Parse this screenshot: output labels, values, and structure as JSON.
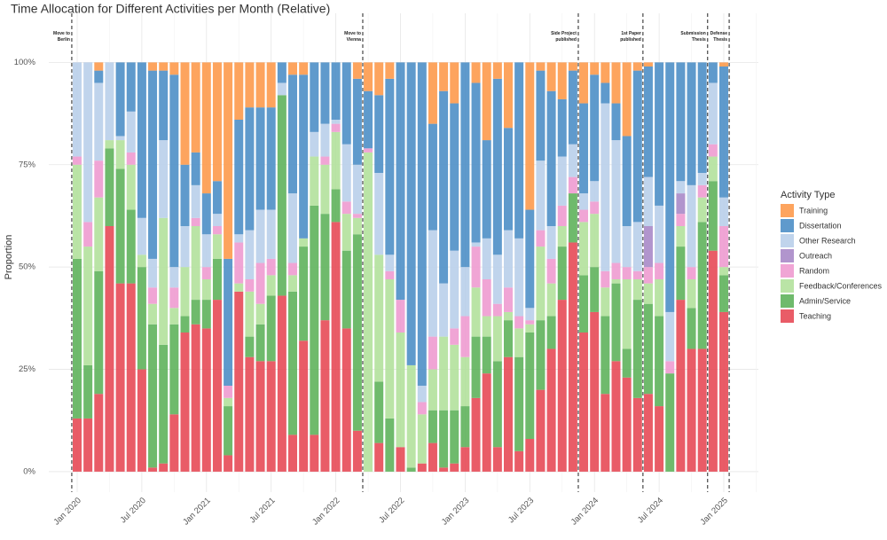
{
  "chart_data": {
    "type": "stacked_bar",
    "title": "Time Allocation for Different Activities per Month (Relative)",
    "y_label": "Proportion",
    "legend_title": "Activity Type",
    "legend": "right",
    "grid": true,
    "x": [
      "2020-01",
      "2020-02",
      "2020-03",
      "2020-04",
      "2020-05",
      "2020-06",
      "2020-07",
      "2020-08",
      "2020-09",
      "2020-10",
      "2020-11",
      "2020-12",
      "2021-01",
      "2021-02",
      "2021-03",
      "2021-04",
      "2021-05",
      "2021-06",
      "2021-07",
      "2021-08",
      "2021-09",
      "2021-10",
      "2021-11",
      "2021-12",
      "2022-01",
      "2022-02",
      "2022-03",
      "2022-04",
      "2022-05",
      "2022-06",
      "2022-07",
      "2022-08",
      "2022-09",
      "2022-10",
      "2022-11",
      "2022-12",
      "2023-01",
      "2023-02",
      "2023-03",
      "2023-04",
      "2023-05",
      "2023-06",
      "2023-07",
      "2023-08",
      "2023-09",
      "2023-10",
      "2023-11",
      "2023-12",
      "2024-01",
      "2024-02",
      "2024-03",
      "2024-04",
      "2024-05",
      "2024-06",
      "2024-07",
      "2024-08",
      "2024-09",
      "2024-10",
      "2024-11",
      "2024-12",
      "2025-01"
    ],
    "xticks": [
      {
        "value": "2020-01",
        "label": "Jan 2020"
      },
      {
        "value": "2020-07",
        "label": "Jul 2020"
      },
      {
        "value": "2021-01",
        "label": "Jan 2021"
      },
      {
        "value": "2021-07",
        "label": "Jul 2021"
      },
      {
        "value": "2022-01",
        "label": "Jan 2022"
      },
      {
        "value": "2022-07",
        "label": "Jul 2022"
      },
      {
        "value": "2023-01",
        "label": "Jan 2023"
      },
      {
        "value": "2023-07",
        "label": "Jul 2023"
      },
      {
        "value": "2024-01",
        "label": "Jan 2024"
      },
      {
        "value": "2024-07",
        "label": "Jul 2024"
      },
      {
        "value": "2025-01",
        "label": "Jan 2025"
      }
    ],
    "ylim": [
      -5,
      112
    ],
    "yticks": [
      {
        "value": 0,
        "label": "0%"
      },
      {
        "value": 25,
        "label": "25%"
      },
      {
        "value": 50,
        "label": "50%"
      },
      {
        "value": 75,
        "label": "75%"
      },
      {
        "value": 100,
        "label": "100%"
      }
    ],
    "events": [
      {
        "x": "2020-01",
        "label": "Move to\nBerlin"
      },
      {
        "x": "2022-04",
        "label": "Move to\nVienna"
      },
      {
        "x": "2023-12",
        "label": "Side Project\npublished"
      },
      {
        "x": "2024-06",
        "label": "1st Paper\npublished"
      },
      {
        "x": "2024-12",
        "label": "Submission\nThesis"
      },
      {
        "x": "2025-02",
        "label": "Defense\nThesis"
      }
    ],
    "series": [
      {
        "name": "Training",
        "color": "#fd9a4d",
        "values": [
          0,
          0,
          2,
          0,
          0,
          0,
          0,
          2,
          2,
          3,
          25,
          22,
          32,
          29,
          48,
          14,
          11,
          11,
          11,
          0,
          3,
          3,
          0,
          0,
          0,
          0,
          4,
          7,
          8,
          4,
          0,
          0,
          0,
          15,
          7,
          10,
          0,
          5,
          19,
          4,
          16,
          0,
          36,
          2,
          7,
          9,
          2,
          10,
          3,
          5,
          10,
          18,
          2,
          1,
          0,
          0,
          0,
          0,
          0,
          0,
          1
        ]
      },
      {
        "name": "Dissertation",
        "color": "#4e8fc6",
        "values": [
          0,
          0,
          3,
          0,
          18,
          12,
          38,
          46,
          17,
          47,
          15,
          8,
          10,
          8,
          31,
          28,
          30,
          25,
          25,
          5,
          29,
          40,
          17,
          15,
          14,
          20,
          21,
          14,
          19,
          43,
          58,
          74,
          79,
          26,
          47,
          36,
          50,
          39,
          24,
          43,
          25,
          43,
          24,
          22,
          33,
          14,
          18,
          22,
          26,
          5,
          9,
          22,
          37,
          27,
          35,
          61,
          29,
          30,
          27,
          5,
          32
        ]
      },
      {
        "name": "Other Research",
        "color": "#b9cfea",
        "values": [
          23,
          39,
          19,
          19,
          1,
          10,
          9,
          7,
          19,
          5,
          10,
          8,
          8,
          3,
          0,
          2,
          12,
          13,
          12,
          3,
          17,
          0,
          6,
          8,
          1,
          14,
          12,
          0,
          20,
          4,
          0,
          0,
          4,
          26,
          13,
          19,
          12,
          1,
          10,
          12,
          14,
          19,
          3,
          17,
          8,
          12,
          8,
          4,
          5,
          41,
          30,
          10,
          12,
          12,
          14,
          12,
          3,
          20,
          3,
          15,
          7
        ]
      },
      {
        "name": "Outreach",
        "color": "#a889c8",
        "values": [
          0,
          0,
          0,
          0,
          0,
          0,
          0,
          0,
          0,
          0,
          0,
          0,
          0,
          0,
          0,
          0,
          0,
          0,
          0,
          0,
          0,
          0,
          0,
          0,
          0,
          0,
          0,
          0,
          0,
          0,
          0,
          0,
          0,
          0,
          0,
          0,
          0,
          0,
          0,
          0,
          0,
          0,
          0,
          0,
          0,
          0,
          0,
          0,
          0,
          0,
          0,
          0,
          0,
          10,
          0,
          0,
          5,
          0,
          0,
          0,
          0
        ]
      },
      {
        "name": "Random",
        "color": "#ee9bd0",
        "values": [
          2,
          6,
          9,
          0,
          0,
          3,
          0,
          4,
          0,
          5,
          0,
          2,
          3,
          2,
          3,
          10,
          3,
          10,
          4,
          0,
          3,
          0,
          0,
          2,
          2,
          3,
          1,
          1,
          0,
          2,
          8,
          0,
          3,
          8,
          0,
          4,
          10,
          10,
          9,
          3,
          6,
          3,
          1,
          4,
          6,
          5,
          4,
          3,
          3,
          4,
          4,
          3,
          2,
          4,
          4,
          3,
          3,
          3,
          3,
          3,
          10
        ]
      },
      {
        "name": "Feedback/Conferences",
        "color": "#b3e19c",
        "values": [
          23,
          29,
          18,
          2,
          7,
          11,
          3,
          5,
          31,
          4,
          12,
          18,
          5,
          6,
          2,
          2,
          11,
          5,
          5,
          0,
          4,
          2,
          12,
          12,
          14,
          9,
          4,
          78,
          31,
          34,
          28,
          25,
          12,
          10,
          18,
          16,
          12,
          12,
          5,
          11,
          2,
          7,
          2,
          18,
          8,
          5,
          0,
          13,
          13,
          7,
          1,
          17,
          5,
          5,
          9,
          0,
          5,
          7,
          6,
          6,
          2
        ]
      },
      {
        "name": "Admin/Service",
        "color": "#5fb25c",
        "values": [
          39,
          13,
          30,
          19,
          28,
          18,
          25,
          35,
          29,
          22,
          4,
          6,
          7,
          10,
          12,
          0,
          5,
          9,
          16,
          49,
          35,
          23,
          56,
          26,
          8,
          19,
          48,
          0,
          15,
          13,
          0,
          1,
          0,
          8,
          14,
          13,
          10,
          15,
          9,
          21,
          9,
          23,
          26,
          17,
          8,
          13,
          12,
          14,
          11,
          19,
          19,
          7,
          24,
          22,
          22,
          24,
          13,
          10,
          31,
          17,
          9
        ]
      },
      {
        "name": "Teaching",
        "color": "#e74a57",
        "values": [
          13,
          13,
          19,
          60,
          46,
          46,
          25,
          1,
          2,
          14,
          34,
          36,
          35,
          42,
          4,
          44,
          28,
          27,
          27,
          43,
          9,
          32,
          9,
          37,
          61,
          35,
          10,
          0,
          7,
          0,
          6,
          0,
          2,
          7,
          1,
          2,
          6,
          18,
          24,
          6,
          28,
          5,
          8,
          20,
          30,
          42,
          56,
          34,
          39,
          19,
          27,
          23,
          18,
          19,
          16,
          0,
          42,
          30,
          30,
          54,
          39
        ]
      }
    ]
  }
}
